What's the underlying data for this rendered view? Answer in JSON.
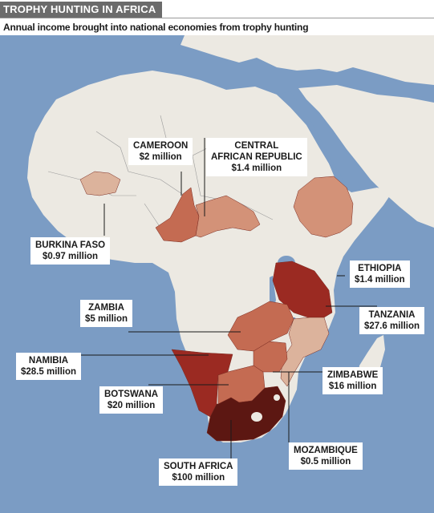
{
  "title": "TROPHY HUNTING IN AFRICA",
  "subtitle": "Annual income brought into national economies from trophy hunting",
  "colors": {
    "ocean": "#7b9cc4",
    "land": "#ece9e2",
    "border": "#9c9c9c",
    "light": "#dcb39c",
    "light_medium": "#d39278",
    "medium": "#c46b52",
    "dark": "#9b2a22",
    "darkest": "#5c1712"
  },
  "countries": [
    {
      "name": "CAMEROON",
      "value": "$2 million",
      "amount_musd": 2,
      "shade": "medium"
    },
    {
      "name": "CENTRAL AFRICAN REPUBLIC",
      "name_line1": "CENTRAL",
      "name_line2": "AFRICAN REPUBLIC",
      "value": "$1.4 million",
      "amount_musd": 1.4,
      "shade": "light_medium"
    },
    {
      "name": "BURKINA FASO",
      "value": "$0.97 million",
      "amount_musd": 0.97,
      "shade": "light"
    },
    {
      "name": "ETHIOPIA",
      "value": "$1.4 million",
      "amount_musd": 1.4,
      "shade": "light_medium"
    },
    {
      "name": "ZAMBIA",
      "value": "$5 million",
      "amount_musd": 5,
      "shade": "medium"
    },
    {
      "name": "TANZANIA",
      "value": "$27.6 million",
      "amount_musd": 27.6,
      "shade": "dark"
    },
    {
      "name": "NAMIBIA",
      "value": "$28.5 million",
      "amount_musd": 28.5,
      "shade": "dark"
    },
    {
      "name": "ZIMBABWE",
      "value": "$16 million",
      "amount_musd": 16,
      "shade": "medium"
    },
    {
      "name": "BOTSWANA",
      "value": "$20 million",
      "amount_musd": 20,
      "shade": "medium"
    },
    {
      "name": "MOZAMBIQUE",
      "value": "$0.5 million",
      "amount_musd": 0.5,
      "shade": "light"
    },
    {
      "name": "SOUTH AFRICA",
      "value": "$100 million",
      "amount_musd": 100,
      "shade": "darkest"
    }
  ]
}
